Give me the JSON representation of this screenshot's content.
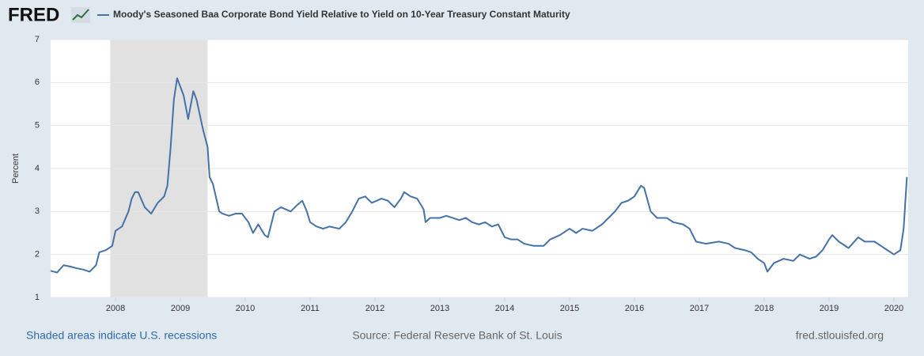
{
  "logo": "FRED",
  "chart_data": {
    "type": "line",
    "title": "Moody's Seasoned Baa Corporate Bond Yield Relative to Yield on 10-Year Treasury Constant Maturity",
    "y_label": "Percent",
    "note": "Shaded areas indicate U.S. recessions",
    "source": "Source: Federal Reserve Bank of St. Louis",
    "site": "fred.stlouisfed.org",
    "xlim": [
      2007.0,
      2020.22
    ],
    "xticks": [
      2008,
      2009,
      2010,
      2011,
      2012,
      2013,
      2014,
      2015,
      2016,
      2017,
      2018,
      2019,
      2020
    ],
    "ylim": [
      1,
      7
    ],
    "yticks": [
      1,
      2,
      3,
      4,
      5,
      6,
      7
    ],
    "grid": true,
    "recessions": [
      [
        2007.92,
        2009.42
      ]
    ],
    "x": [
      2007.0,
      2007.1,
      2007.2,
      2007.3,
      2007.4,
      2007.5,
      2007.6,
      2007.7,
      2007.75,
      2007.85,
      2007.95,
      2008.0,
      2008.1,
      2008.2,
      2008.25,
      2008.3,
      2008.35,
      2008.45,
      2008.55,
      2008.65,
      2008.75,
      2008.8,
      2008.85,
      2008.9,
      2008.95,
      2009.0,
      2009.05,
      2009.12,
      2009.2,
      2009.25,
      2009.35,
      2009.42,
      2009.45,
      2009.5,
      2009.6,
      2009.65,
      2009.75,
      2009.85,
      2009.95,
      2010.05,
      2010.12,
      2010.2,
      2010.3,
      2010.35,
      2010.45,
      2010.55,
      2010.7,
      2010.8,
      2010.88,
      2010.95,
      2011.0,
      2011.1,
      2011.2,
      2011.3,
      2011.45,
      2011.55,
      2011.65,
      2011.75,
      2011.85,
      2011.95,
      2012.1,
      2012.2,
      2012.3,
      2012.4,
      2012.45,
      2012.55,
      2012.65,
      2012.75,
      2012.78,
      2012.85,
      2013.0,
      2013.1,
      2013.2,
      2013.3,
      2013.4,
      2013.5,
      2013.6,
      2013.7,
      2013.8,
      2013.9,
      2014.0,
      2014.1,
      2014.2,
      2014.3,
      2014.45,
      2014.6,
      2014.7,
      2014.85,
      2015.0,
      2015.1,
      2015.2,
      2015.35,
      2015.5,
      2015.6,
      2015.7,
      2015.8,
      2015.9,
      2016.0,
      2016.1,
      2016.15,
      2016.25,
      2016.35,
      2016.5,
      2016.6,
      2016.75,
      2016.85,
      2016.95,
      2017.1,
      2017.3,
      2017.45,
      2017.55,
      2017.7,
      2017.8,
      2017.9,
      2018.0,
      2018.05,
      2018.15,
      2018.3,
      2018.45,
      2018.55,
      2018.7,
      2018.8,
      2018.9,
      2019.0,
      2019.05,
      2019.15,
      2019.3,
      2019.45,
      2019.55,
      2019.7,
      2019.8,
      2019.9,
      2020.0,
      2020.1,
      2020.15,
      2020.2
    ],
    "series": [
      {
        "name": "Moody's Seasoned Baa Corporate Bond Yield Relative to Yield on 10-Year Treasury Constant Maturity",
        "color": "#4572a7",
        "values": [
          1.62,
          1.58,
          1.75,
          1.72,
          1.68,
          1.65,
          1.6,
          1.75,
          2.05,
          2.1,
          2.2,
          2.55,
          2.65,
          3.0,
          3.3,
          3.45,
          3.45,
          3.1,
          2.95,
          3.2,
          3.35,
          3.6,
          4.5,
          5.6,
          6.1,
          5.9,
          5.7,
          5.15,
          5.8,
          5.6,
          4.9,
          4.5,
          3.8,
          3.65,
          3.0,
          2.95,
          2.9,
          2.95,
          2.95,
          2.75,
          2.5,
          2.7,
          2.45,
          2.4,
          3.0,
          3.1,
          3.0,
          3.15,
          3.25,
          3.0,
          2.75,
          2.65,
          2.6,
          2.65,
          2.6,
          2.75,
          3.0,
          3.3,
          3.35,
          3.2,
          3.3,
          3.25,
          3.1,
          3.3,
          3.45,
          3.35,
          3.3,
          3.05,
          2.75,
          2.85,
          2.85,
          2.9,
          2.85,
          2.8,
          2.85,
          2.75,
          2.7,
          2.75,
          2.65,
          2.7,
          2.4,
          2.35,
          2.35,
          2.25,
          2.2,
          2.2,
          2.35,
          2.45,
          2.6,
          2.5,
          2.6,
          2.55,
          2.7,
          2.85,
          3.0,
          3.2,
          3.25,
          3.35,
          3.6,
          3.55,
          3.0,
          2.85,
          2.85,
          2.75,
          2.7,
          2.6,
          2.3,
          2.25,
          2.3,
          2.25,
          2.15,
          2.1,
          2.05,
          1.9,
          1.8,
          1.6,
          1.8,
          1.9,
          1.85,
          2.0,
          1.9,
          1.95,
          2.1,
          2.35,
          2.45,
          2.3,
          2.15,
          2.4,
          2.3,
          2.3,
          2.2,
          2.1,
          2.0,
          2.1,
          2.6,
          3.8
        ]
      }
    ]
  }
}
